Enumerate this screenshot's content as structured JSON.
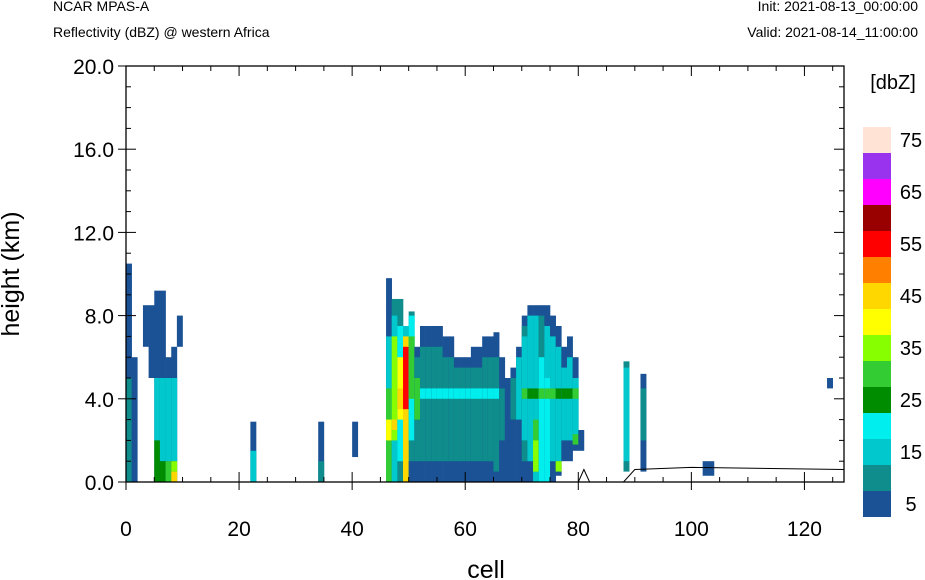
{
  "header": {
    "model": "NCAR MPAS-A",
    "field": "Reflectivity (dBZ) @ western Africa",
    "init": "Init: 2021-08-13_00:00:00",
    "valid": "Valid: 2021-08-14_11:00:00"
  },
  "chart_data": {
    "type": "heatmap",
    "xlabel": "cell",
    "ylabel": "height (km)",
    "xlim": [
      0,
      127
    ],
    "ylim": [
      0,
      20
    ],
    "x_ticks": [
      "0",
      "20",
      "40",
      "60",
      "80",
      "100",
      "120"
    ],
    "y_ticks": [
      "0.0",
      "4.0",
      "8.0",
      "12.0",
      "16.0",
      "20.0"
    ],
    "colorbar": {
      "unit": "[dbZ]",
      "levels": [
        5,
        10,
        15,
        20,
        25,
        30,
        35,
        40,
        45,
        50,
        55,
        60,
        65,
        70,
        75
      ],
      "labels": [
        "5",
        "15",
        "25",
        "35",
        "45",
        "55",
        "65",
        "75"
      ],
      "colors": [
        "#1a5295",
        "#0f8c8c",
        "#00c8cc",
        "#00eeee",
        "#008c00",
        "#33cc33",
        "#88ff00",
        "#ffff00",
        "#ffd700",
        "#ff8000",
        "#ff0000",
        "#990000",
        "#ff00ff",
        "#9933ee",
        "#ffe4d6"
      ]
    },
    "columns": [
      {
        "x": 0,
        "z": [
          [
            0,
            10.5,
            5
          ],
          [
            0,
            5,
            10
          ]
        ]
      },
      {
        "x": 1,
        "z": [
          [
            0,
            6,
            5
          ]
        ]
      },
      {
        "x": 3,
        "z": [
          [
            6.5,
            8.5,
            5
          ]
        ]
      },
      {
        "x": 4,
        "z": [
          [
            5,
            8.5,
            5
          ]
        ]
      },
      {
        "x": 5,
        "z": [
          [
            0,
            9.2,
            5
          ],
          [
            2,
            5,
            15
          ],
          [
            0,
            2,
            25
          ]
        ]
      },
      {
        "x": 6,
        "z": [
          [
            0,
            9.2,
            5
          ],
          [
            1,
            5,
            15
          ],
          [
            0,
            1,
            25
          ]
        ]
      },
      {
        "x": 7,
        "z": [
          [
            0,
            6,
            5
          ],
          [
            1,
            5,
            15
          ],
          [
            0,
            1,
            30
          ]
        ]
      },
      {
        "x": 8,
        "z": [
          [
            0,
            6.5,
            5
          ],
          [
            1,
            5,
            15
          ],
          [
            0.5,
            1,
            35
          ],
          [
            0,
            0.5,
            45
          ]
        ]
      },
      {
        "x": 9,
        "z": [
          [
            6.5,
            8,
            5
          ]
        ]
      },
      {
        "x": 22,
        "z": [
          [
            0,
            2.9,
            5
          ],
          [
            0,
            1.5,
            15
          ]
        ]
      },
      {
        "x": 34,
        "z": [
          [
            0,
            2.9,
            5
          ],
          [
            0,
            1,
            10
          ]
        ]
      },
      {
        "x": 40,
        "z": [
          [
            1.2,
            2.9,
            5
          ]
        ]
      },
      {
        "x": 46,
        "z": [
          [
            0,
            9.8,
            5
          ],
          [
            0,
            7,
            15
          ],
          [
            0,
            4.5,
            30
          ],
          [
            2,
            3,
            40
          ]
        ]
      },
      {
        "x": 47,
        "z": [
          [
            0,
            8.8,
            10
          ],
          [
            0,
            8,
            15
          ],
          [
            2,
            7,
            35
          ],
          [
            2.5,
            3,
            45
          ]
        ]
      },
      {
        "x": 48,
        "z": [
          [
            0,
            8.8,
            10
          ],
          [
            1,
            7.5,
            20
          ],
          [
            3,
            6,
            40
          ],
          [
            3.5,
            4.5,
            45
          ]
        ]
      },
      {
        "x": 49,
        "z": [
          [
            0,
            7.5,
            15
          ],
          [
            0,
            7,
            45
          ],
          [
            3.5,
            6.5,
            55
          ]
        ]
      },
      {
        "x": 50,
        "z": [
          [
            0,
            8.2,
            10
          ],
          [
            2,
            8,
            20
          ],
          [
            0,
            1,
            5
          ],
          [
            4,
            7,
            30
          ]
        ]
      },
      {
        "x": 51,
        "z": [
          [
            0,
            6.5,
            5
          ],
          [
            1,
            6,
            10
          ],
          [
            3,
            5,
            30
          ]
        ]
      },
      {
        "x": 52,
        "z": [
          [
            0,
            7.5,
            5
          ],
          [
            1,
            6.5,
            10
          ],
          [
            4,
            4.5,
            20
          ]
        ]
      },
      {
        "x": 53,
        "z": [
          [
            0,
            7.5,
            5
          ],
          [
            1,
            6.5,
            10
          ],
          [
            4,
            4.5,
            20
          ]
        ]
      },
      {
        "x": 54,
        "z": [
          [
            0,
            7.5,
            5
          ],
          [
            1,
            6.5,
            10
          ],
          [
            4,
            4.5,
            20
          ]
        ]
      },
      {
        "x": 55,
        "z": [
          [
            0,
            7.5,
            5
          ],
          [
            1,
            6.5,
            10
          ],
          [
            4,
            4.5,
            20
          ]
        ]
      },
      {
        "x": 56,
        "z": [
          [
            0,
            7,
            5
          ],
          [
            1,
            6,
            10
          ],
          [
            4,
            4.5,
            20
          ]
        ]
      },
      {
        "x": 57,
        "z": [
          [
            0,
            7,
            5
          ],
          [
            1,
            6,
            10
          ],
          [
            4,
            4.5,
            20
          ]
        ]
      },
      {
        "x": 58,
        "z": [
          [
            0,
            6,
            5
          ],
          [
            1,
            5.5,
            10
          ],
          [
            4,
            4.5,
            20
          ]
        ]
      },
      {
        "x": 59,
        "z": [
          [
            0,
            6,
            5
          ],
          [
            1,
            5.5,
            10
          ],
          [
            4,
            4.5,
            20
          ]
        ]
      },
      {
        "x": 60,
        "z": [
          [
            0,
            6,
            5
          ],
          [
            1,
            5.5,
            10
          ],
          [
            4,
            4.5,
            20
          ]
        ]
      },
      {
        "x": 61,
        "z": [
          [
            0,
            6.5,
            5
          ],
          [
            1,
            5.5,
            10
          ],
          [
            4,
            4.5,
            20
          ]
        ]
      },
      {
        "x": 62,
        "z": [
          [
            0,
            6.5,
            5
          ],
          [
            1,
            5.5,
            10
          ],
          [
            4,
            4.5,
            20
          ]
        ]
      },
      {
        "x": 63,
        "z": [
          [
            0,
            7,
            5
          ],
          [
            1,
            6,
            10
          ],
          [
            4,
            4.5,
            20
          ]
        ]
      },
      {
        "x": 64,
        "z": [
          [
            0,
            7,
            5
          ],
          [
            1,
            6,
            10
          ],
          [
            4,
            4.5,
            20
          ]
        ]
      },
      {
        "x": 65,
        "z": [
          [
            0,
            7.2,
            5
          ],
          [
            0.5,
            6,
            10
          ],
          [
            4,
            4.5,
            20
          ]
        ]
      },
      {
        "x": 66,
        "z": [
          [
            0,
            6,
            5
          ],
          [
            2,
            4.5,
            10
          ]
        ]
      },
      {
        "x": 67,
        "z": [
          [
            0,
            5,
            5
          ]
        ]
      },
      {
        "x": 68,
        "z": [
          [
            0,
            5.5,
            5
          ],
          [
            3,
            5,
            10
          ]
        ]
      },
      {
        "x": 69,
        "z": [
          [
            0,
            6.5,
            5
          ],
          [
            3,
            6,
            15
          ]
        ]
      },
      {
        "x": 70,
        "z": [
          [
            0,
            8,
            5
          ],
          [
            1,
            7.5,
            10
          ],
          [
            2,
            7,
            15
          ],
          [
            4,
            4.5,
            30
          ]
        ]
      },
      {
        "x": 71,
        "z": [
          [
            0,
            8.5,
            5
          ],
          [
            1,
            8,
            15
          ],
          [
            4,
            4.5,
            25
          ]
        ]
      },
      {
        "x": 72,
        "z": [
          [
            0,
            8.5,
            5
          ],
          [
            0,
            8,
            15
          ],
          [
            0.5,
            3,
            30
          ],
          [
            0.5,
            2,
            35
          ],
          [
            4,
            4.5,
            25
          ]
        ]
      },
      {
        "x": 73,
        "z": [
          [
            0,
            8.5,
            5
          ],
          [
            0,
            8,
            10
          ],
          [
            0,
            6,
            20
          ],
          [
            4,
            4.5,
            30
          ]
        ]
      },
      {
        "x": 74,
        "z": [
          [
            0,
            8.5,
            5
          ],
          [
            0,
            7.5,
            15
          ],
          [
            0,
            5,
            20
          ],
          [
            4,
            4.5,
            30
          ]
        ]
      },
      {
        "x": 75,
        "z": [
          [
            0,
            8,
            5
          ],
          [
            1,
            7,
            15
          ],
          [
            4,
            4.5,
            30
          ]
        ]
      },
      {
        "x": 76,
        "z": [
          [
            0.3,
            7.5,
            5
          ],
          [
            1,
            6.5,
            15
          ],
          [
            0.5,
            1,
            35
          ],
          [
            4,
            4.5,
            25
          ]
        ]
      },
      {
        "x": 77,
        "z": [
          [
            1,
            6.5,
            5
          ],
          [
            2,
            5.5,
            15
          ],
          [
            4,
            4.5,
            25
          ]
        ]
      },
      {
        "x": 78,
        "z": [
          [
            1,
            7,
            5
          ],
          [
            2,
            6,
            15
          ],
          [
            4,
            4.5,
            25
          ]
        ]
      },
      {
        "x": 79,
        "z": [
          [
            1.5,
            6,
            5
          ],
          [
            2,
            5,
            15
          ],
          [
            4,
            4.5,
            30
          ],
          [
            1.8,
            2.3,
            30
          ]
        ]
      },
      {
        "x": 80,
        "z": [
          [
            1.5,
            2.5,
            5
          ]
        ]
      },
      {
        "x": 88,
        "z": [
          [
            0.5,
            5.8,
            10
          ],
          [
            1,
            5.5,
            15
          ]
        ]
      },
      {
        "x": 91,
        "z": [
          [
            0.5,
            5.2,
            5
          ],
          [
            2,
            4.5,
            10
          ]
        ]
      },
      {
        "x": 102,
        "z": [
          [
            0.3,
            1,
            5
          ]
        ]
      },
      {
        "x": 103,
        "z": [
          [
            0.3,
            1,
            5
          ]
        ]
      },
      {
        "x": 124,
        "z": [
          [
            4.5,
            5,
            5
          ]
        ]
      }
    ]
  }
}
